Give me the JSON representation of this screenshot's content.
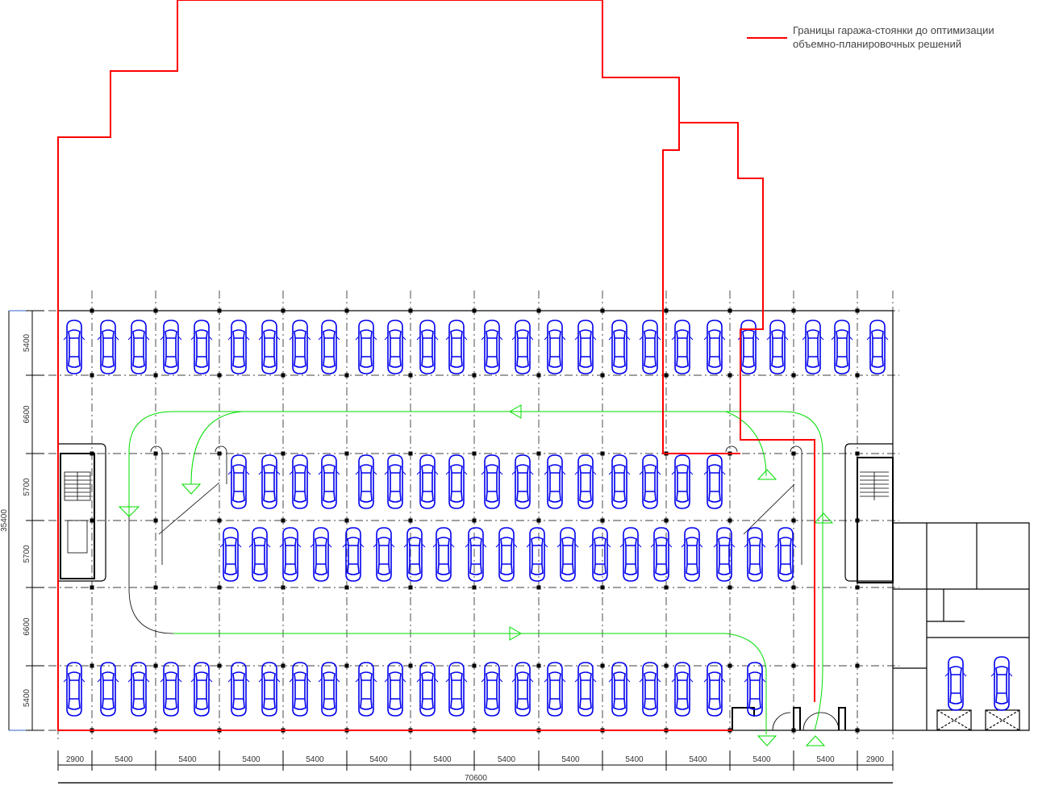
{
  "legend": {
    "line_color": "#ff0000",
    "line1": "Границы гаража-стоянки до оптимизации",
    "line2": "объемно-планировочных решений"
  },
  "dimensions": {
    "bottom": [
      "2900",
      "5400",
      "5400",
      "5400",
      "5400",
      "5400",
      "5400",
      "5400",
      "5400",
      "5400",
      "5400",
      "5400",
      "5400",
      "2900"
    ],
    "bottom_total": "70600",
    "left": [
      "5400",
      "6600",
      "5700",
      "5700",
      "6600",
      "5400"
    ],
    "left_total": "35400"
  },
  "colors": {
    "cars": "#0000ee",
    "boundary": "#ff0000",
    "traffic_route": "#00dd00",
    "walls": "#000000"
  }
}
